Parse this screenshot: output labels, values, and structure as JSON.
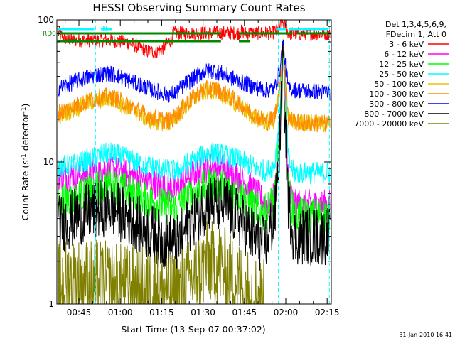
{
  "chart_data": {
    "type": "line",
    "title": "HESSI Observing Summary Count Rates",
    "xlabel": "Start Time (13-Sep-07 00:37:02)",
    "ylabel_prefix": "Count Rate (s",
    "ylabel_exp": "-1",
    "ylabel_mid": " detector",
    "ylabel_suffix": ")",
    "y_scale": "log",
    "ylim": [
      1,
      100
    ],
    "xlim_minutes": [
      37.0,
      136.5
    ],
    "x_ticks": [
      {
        "label": "00:45",
        "minutes": 45
      },
      {
        "label": "01:00",
        "minutes": 60
      },
      {
        "label": "01:15",
        "minutes": 75
      },
      {
        "label": "01:30",
        "minutes": 90
      },
      {
        "label": "01:45",
        "minutes": 105
      },
      {
        "label": "02:00",
        "minutes": 120
      },
      {
        "label": "02:15",
        "minutes": 135
      }
    ],
    "y_major_ticks": [
      {
        "label": "1",
        "value": 1
      },
      {
        "label": "10",
        "value": 10
      },
      {
        "label": "100",
        "value": 100
      }
    ],
    "legend_header": [
      "Det 1,3,4,5,6,9,",
      "FDecim 1, Att 0"
    ],
    "legend_placement": "right",
    "series": [
      {
        "name": "3 - 6 keV",
        "color": "#ff0000",
        "noise": 0.1,
        "points": [
          [
            37.5,
            81
          ],
          [
            40,
            74
          ],
          [
            43,
            72
          ],
          [
            47,
            72
          ],
          [
            51,
            72
          ],
          [
            55,
            72
          ],
          [
            59,
            71
          ],
          [
            63,
            69
          ],
          [
            67,
            64
          ],
          [
            70,
            60
          ],
          [
            73,
            60
          ],
          [
            75,
            62
          ],
          [
            77,
            68
          ],
          [
            78.5,
            73
          ],
          [
            79.5,
            81
          ],
          [
            80.5,
            81
          ],
          [
            96,
            81
          ],
          [
            103,
            81
          ],
          [
            104,
            83
          ],
          [
            105,
            81
          ],
          [
            110,
            81
          ],
          [
            115,
            81
          ],
          [
            117,
            84
          ],
          [
            118,
            90
          ],
          [
            119,
            97
          ],
          [
            120,
            88
          ],
          [
            121,
            80
          ],
          [
            124,
            80
          ],
          [
            130,
            80
          ],
          [
            136,
            80
          ]
        ]
      },
      {
        "name": "6 - 12 keV",
        "color": "#ff00ff",
        "noise": 0.22,
        "points": [
          [
            37.5,
            7.8
          ],
          [
            44,
            8.1
          ],
          [
            51,
            8.6
          ],
          [
            56,
            9.0
          ],
          [
            60,
            8.5
          ],
          [
            65,
            7.9
          ],
          [
            70,
            7.3
          ],
          [
            74,
            6.8
          ],
          [
            78,
            6.5
          ],
          [
            80.5,
            6.4
          ],
          [
            84,
            7.8
          ],
          [
            90,
            9.0
          ],
          [
            94,
            9.2
          ],
          [
            98,
            8.8
          ],
          [
            102,
            8.0
          ],
          [
            106,
            7.0
          ],
          [
            110,
            5.8
          ],
          [
            114,
            4.8
          ],
          [
            116,
            6
          ],
          [
            118,
            20
          ],
          [
            119,
            62
          ],
          [
            120,
            22
          ],
          [
            121,
            7
          ],
          [
            123,
            5.0
          ],
          [
            128,
            5.0
          ],
          [
            136,
            5.0
          ]
        ]
      },
      {
        "name": "12 - 25 keV",
        "color": "#00ff00",
        "noise": 0.26,
        "points": [
          [
            37.5,
            5.3
          ],
          [
            44,
            5.6
          ],
          [
            51,
            6.5
          ],
          [
            56,
            7.0
          ],
          [
            60,
            6.5
          ],
          [
            66,
            5.8
          ],
          [
            72,
            5.2
          ],
          [
            76,
            4.9
          ],
          [
            80.5,
            4.8
          ],
          [
            86,
            5.8
          ],
          [
            92,
            7.0
          ],
          [
            98,
            6.8
          ],
          [
            103,
            5.9
          ],
          [
            108,
            5.0
          ],
          [
            112,
            4.3
          ],
          [
            116,
            5.5
          ],
          [
            118,
            18
          ],
          [
            119,
            60
          ],
          [
            120,
            20
          ],
          [
            121,
            6
          ],
          [
            123,
            4.3
          ],
          [
            128,
            4.2
          ],
          [
            136,
            4.2
          ]
        ]
      },
      {
        "name": "25 - 50 keV",
        "color": "#00ffff",
        "noise": 0.16,
        "points": [
          [
            37.5,
            9.3
          ],
          [
            44,
            9.6
          ],
          [
            51,
            10.8
          ],
          [
            56,
            11.6
          ],
          [
            60,
            11.0
          ],
          [
            65,
            10.1
          ],
          [
            70,
            9.4
          ],
          [
            75,
            8.9
          ],
          [
            80.5,
            8.6
          ],
          [
            84,
            9.6
          ],
          [
            90,
            11.1
          ],
          [
            94,
            11.6
          ],
          [
            98,
            11.1
          ],
          [
            103,
            10.3
          ],
          [
            108,
            9.3
          ],
          [
            113,
            8.6
          ],
          [
            116,
            9.5
          ],
          [
            118,
            25
          ],
          [
            119,
            78
          ],
          [
            120,
            26
          ],
          [
            121,
            10
          ],
          [
            123,
            8.4
          ],
          [
            128,
            8.4
          ],
          [
            136,
            8.4
          ]
        ]
      },
      {
        "name": "50 - 100 keV",
        "color": "#e8c400",
        "noise": 0.13,
        "points": [
          [
            37.5,
            21
          ],
          [
            44,
            24
          ],
          [
            51,
            27
          ],
          [
            56,
            28
          ],
          [
            60,
            26
          ],
          [
            65,
            23
          ],
          [
            70,
            20
          ],
          [
            74,
            19
          ],
          [
            78,
            19
          ],
          [
            80.5,
            21
          ],
          [
            84,
            25
          ],
          [
            90,
            31
          ],
          [
            94,
            32
          ],
          [
            98,
            29
          ],
          [
            103,
            25
          ],
          [
            108,
            21
          ],
          [
            113,
            19
          ],
          [
            116,
            20
          ],
          [
            118,
            33
          ],
          [
            119,
            72
          ],
          [
            120,
            32
          ],
          [
            121,
            20
          ],
          [
            124,
            19
          ],
          [
            136,
            18.5
          ]
        ]
      },
      {
        "name": "100 - 300 keV",
        "color": "#ff8c00",
        "noise": 0.13,
        "points": [
          [
            37.5,
            22
          ],
          [
            44,
            25
          ],
          [
            51,
            28
          ],
          [
            56,
            29
          ],
          [
            60,
            27
          ],
          [
            65,
            24
          ],
          [
            70,
            21
          ],
          [
            74,
            20
          ],
          [
            78,
            19.5
          ],
          [
            80.5,
            21.5
          ],
          [
            84,
            26
          ],
          [
            90,
            32
          ],
          [
            94,
            33
          ],
          [
            98,
            30
          ],
          [
            103,
            26
          ],
          [
            108,
            22
          ],
          [
            113,
            19
          ],
          [
            116,
            21
          ],
          [
            118,
            35
          ],
          [
            119,
            75
          ],
          [
            120,
            33
          ],
          [
            121,
            20
          ],
          [
            124,
            19
          ],
          [
            136,
            18.5
          ]
        ]
      },
      {
        "name": "300 - 800 keV",
        "color": "#0000ff",
        "noise": 0.12,
        "points": [
          [
            37.5,
            33
          ],
          [
            44,
            37
          ],
          [
            51,
            41
          ],
          [
            56,
            42
          ],
          [
            60,
            40
          ],
          [
            65,
            36
          ],
          [
            70,
            33
          ],
          [
            74,
            31
          ],
          [
            78,
            30
          ],
          [
            80.5,
            31
          ],
          [
            84,
            36
          ],
          [
            90,
            43
          ],
          [
            94,
            44
          ],
          [
            98,
            41
          ],
          [
            103,
            37
          ],
          [
            108,
            34
          ],
          [
            113,
            32
          ],
          [
            116,
            33
          ],
          [
            118,
            46
          ],
          [
            119,
            70
          ],
          [
            120,
            45
          ],
          [
            121,
            33
          ],
          [
            124,
            32
          ],
          [
            136,
            31
          ]
        ]
      },
      {
        "name": "800 - 7000 keV",
        "color": "#000000",
        "noise": 0.42,
        "points": [
          [
            37.5,
            3.6
          ],
          [
            44,
            4.1
          ],
          [
            51,
            4.6
          ],
          [
            56,
            4.9
          ],
          [
            60,
            4.4
          ],
          [
            65,
            3.8
          ],
          [
            70,
            3.3
          ],
          [
            74,
            2.9
          ],
          [
            80.5,
            2.6
          ],
          [
            86,
            4.0
          ],
          [
            92,
            5.2
          ],
          [
            98,
            5.0
          ],
          [
            103,
            4.0
          ],
          [
            108,
            3.0
          ],
          [
            112,
            2.6
          ],
          [
            116,
            4
          ],
          [
            118,
            16
          ],
          [
            119,
            55
          ],
          [
            120,
            15
          ],
          [
            121,
            5
          ],
          [
            123,
            3.0
          ],
          [
            128,
            3.0
          ],
          [
            136,
            3.0
          ]
        ]
      },
      {
        "name": "7000 - 20000 keV",
        "color": "#808000",
        "noise": 0.6,
        "points": [
          [
            37.5,
            1.4
          ],
          [
            44,
            1.5
          ],
          [
            50,
            1.45
          ],
          [
            56,
            1.4
          ],
          [
            62,
            1.35
          ],
          [
            68,
            1.3
          ],
          [
            74,
            1.25
          ],
          [
            80.5,
            1.2
          ],
          [
            86,
            1.5
          ],
          [
            92,
            2.0
          ],
          [
            96,
            1.9
          ],
          [
            100,
            1.6
          ],
          [
            104,
            1.35
          ],
          [
            108,
            1.2
          ],
          [
            112,
            1.05
          ]
        ]
      }
    ],
    "flags": [
      {
        "label": "RD0",
        "color": "#008800",
        "segments": [
          [
            37.2,
            96.5
          ],
          [
            103,
            122.5
          ],
          [
            124,
            136.5
          ]
        ]
      },
      {
        "label": "RD4",
        "color": "#008800",
        "segments": [
          [
            37.2,
            96.5
          ],
          [
            103,
            107
          ]
        ]
      }
    ],
    "annotations": [
      {
        "label": "N",
        "color": "#00ffff"
      }
    ],
    "cyan_dashed_minutes": [
      51,
      117.3,
      135.8
    ],
    "cyan_flag_segments": [
      [
        37.2,
        50.5
      ],
      [
        53,
        57
      ],
      [
        116.5,
        120
      ],
      [
        121,
        135.5
      ]
    ]
  },
  "footer_date": "31-Jan-2010 16:41"
}
